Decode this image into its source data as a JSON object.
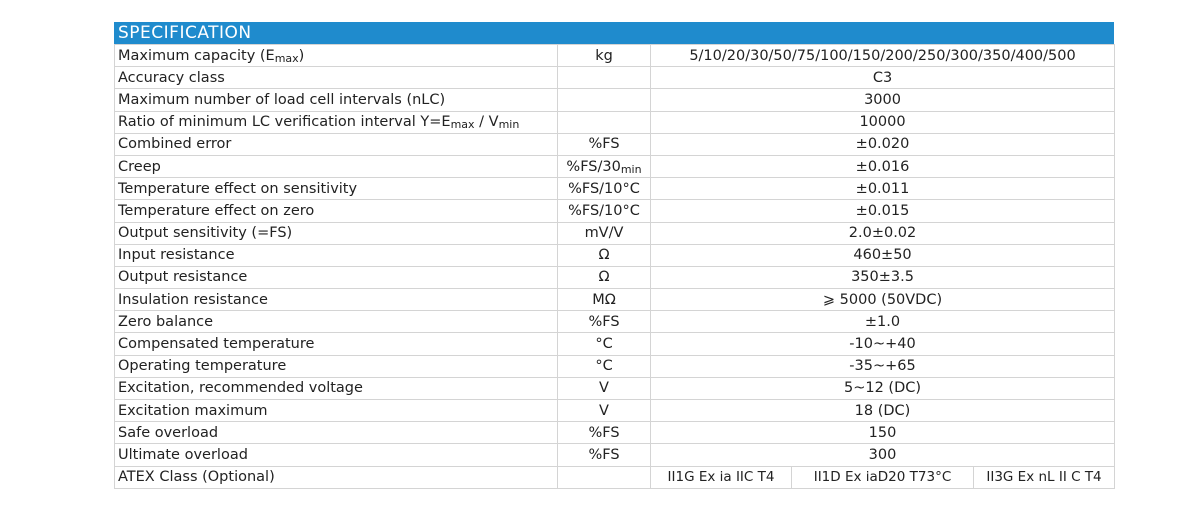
{
  "header": {
    "title": "SPECIFICATION"
  },
  "colors": {
    "header_bg": "#1f8bcd",
    "header_text": "#ffffff",
    "border": "#d4d4d4"
  },
  "rows": [
    {
      "param": "Maximum capacity (E",
      "param_sub": "max",
      "param_tail": ")",
      "unit": "kg",
      "value": "5/10/20/30/50/75/100/150/200/250/300/350/400/500"
    },
    {
      "param": "Accuracy class",
      "unit": "",
      "value": "C3"
    },
    {
      "param": "Maximum number of load cell intervals (nLC)",
      "unit": "",
      "value": "3000"
    },
    {
      "param": "Ratio of minimum LC verification interval Y=E",
      "param_sub": "max",
      "param_tail": " / V",
      "param_sub2": "min",
      "unit": "",
      "value": "10000"
    },
    {
      "param": "Combined error",
      "unit": "%FS",
      "value": "±0.020"
    },
    {
      "param": "Creep",
      "unit": "%FS/30",
      "unit_sub": "min",
      "value": "±0.016"
    },
    {
      "param": "Temperature effect on sensitivity",
      "unit": "%FS/10°C",
      "value": "±0.011"
    },
    {
      "param": "Temperature effect on zero",
      "unit": "%FS/10°C",
      "value": "±0.015"
    },
    {
      "param": "Output sensitivity (=FS)",
      "unit": "mV/V",
      "value": "2.0±0.02"
    },
    {
      "param": "Input resistance",
      "unit": "Ω",
      "value": "460±50"
    },
    {
      "param": "Output resistance",
      "unit": "Ω",
      "value": "350±3.5"
    },
    {
      "param": "Insulation resistance",
      "unit": "MΩ",
      "value": "⩾ 5000 (50VDC)"
    },
    {
      "param": "Zero balance",
      "unit": "%FS",
      "value": "±1.0"
    },
    {
      "param": "Compensated temperature",
      "unit": "°C",
      "value": "-10~+40"
    },
    {
      "param": "Operating temperature",
      "unit": "°C",
      "value": "-35~+65"
    },
    {
      "param": "Excitation, recommended voltage",
      "unit": "V",
      "value": "5~12 (DC)"
    },
    {
      "param": "Excitation maximum",
      "unit": "V",
      "value": "18 (DC)"
    },
    {
      "param": "Safe overload",
      "unit": "%FS",
      "value": "150"
    },
    {
      "param": "Ultimate overload",
      "unit": "%FS",
      "value": "300"
    }
  ],
  "atex": {
    "param": "ATEX Class (Optional)",
    "unit": "",
    "values": [
      "II1G Ex ia IIC T4",
      "II1D Ex iaD20 T73°C",
      "II3G Ex nL II C T4"
    ]
  }
}
